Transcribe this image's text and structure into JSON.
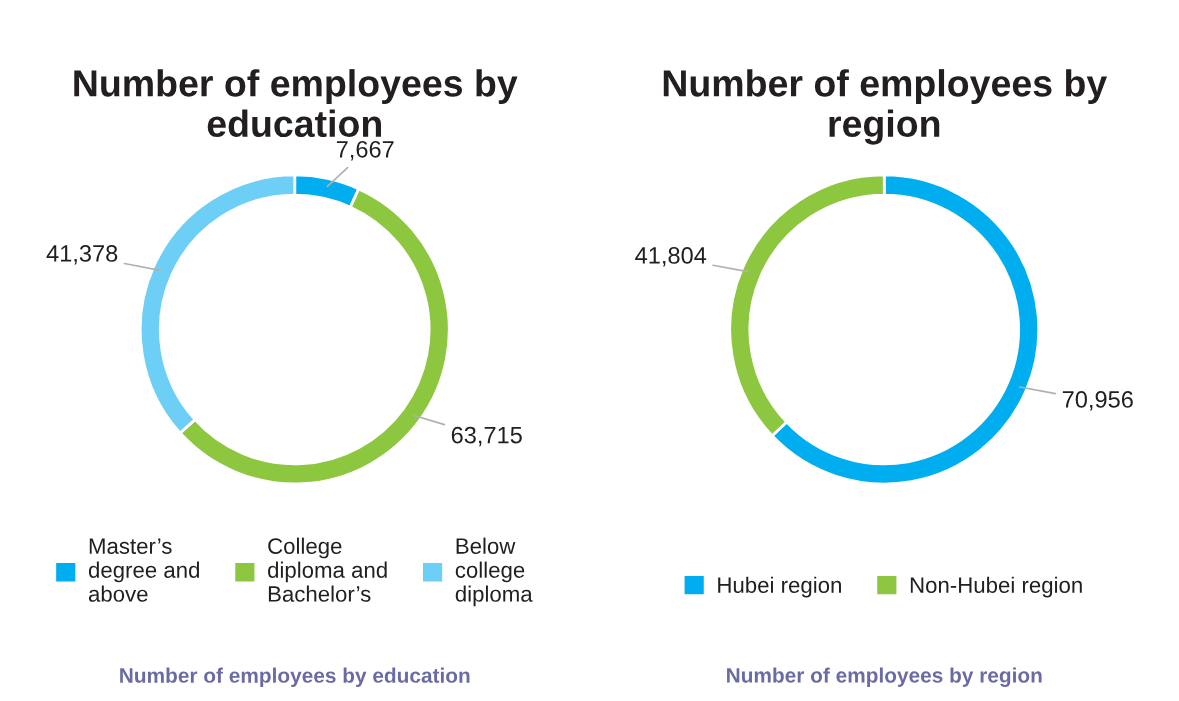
{
  "chart_data": [
    {
      "type": "donut",
      "title": "Number of employees by education",
      "categories": [
        "Master’s degree and above",
        "College diploma and Bachelor’s",
        "Below college diploma"
      ],
      "values": [
        7667,
        63715,
        41378
      ],
      "colors": [
        "#00aeef",
        "#8dc63f",
        "#6dcff6"
      ],
      "value_labels": [
        "7,667",
        "63,715",
        "41,378"
      ],
      "legend": "bottom",
      "annotations": [
        "Number of employees by education"
      ]
    },
    {
      "type": "donut",
      "title": "Number of employees by region",
      "categories": [
        "Hubei region",
        "Non-Hubei region"
      ],
      "values": [
        70956,
        41804
      ],
      "colors": [
        "#00aeef",
        "#8dc63f"
      ],
      "value_labels": [
        "70,956",
        "41,804"
      ],
      "legend": "bottom",
      "annotations": [
        "Number of employees by region"
      ]
    }
  ]
}
